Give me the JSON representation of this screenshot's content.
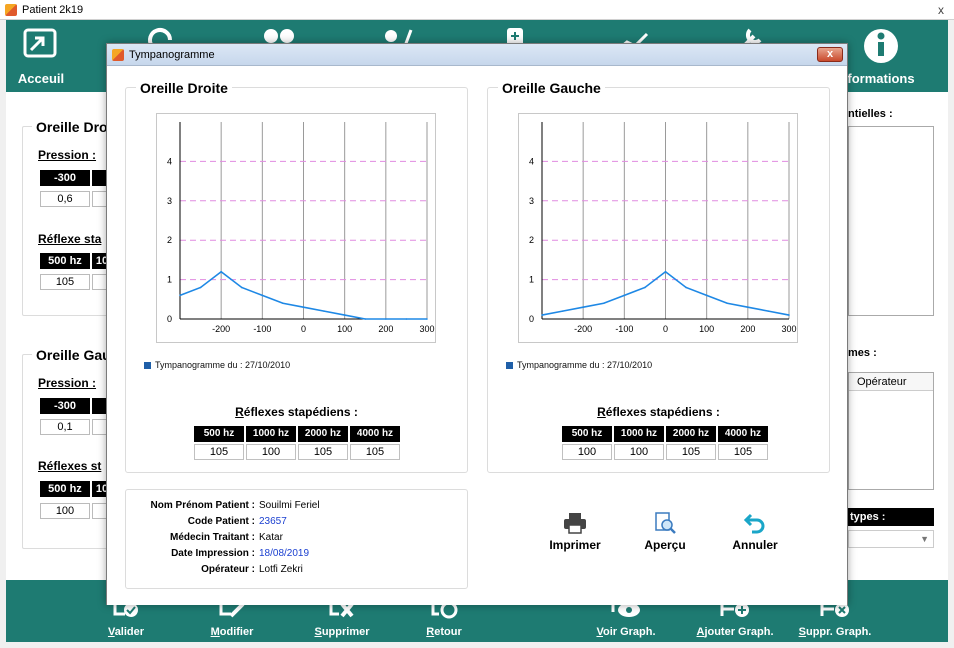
{
  "main_window": {
    "title": "Patient 2k19",
    "close_glyph": "x",
    "toolbar": [
      {
        "label": "Acceuil",
        "icon": "login-icon"
      },
      {
        "label": "",
        "icon": "ear-icon"
      },
      {
        "label": "",
        "icon": "people-icon"
      },
      {
        "label": "",
        "icon": "doctor-icon"
      },
      {
        "label": "",
        "icon": "medicine-icon"
      },
      {
        "label": "",
        "icon": "chart-line-icon"
      },
      {
        "label": "",
        "icon": "tools-icon"
      },
      {
        "label": "formations",
        "icon": "info-icon"
      }
    ],
    "left_right": {
      "title": "Oreille Dro",
      "pression_label": "Pression :",
      "pression_head": "-300",
      "pression_val": "0,6",
      "reflexe_label": "Réflexe sta",
      "reflexe_head": "500 hz",
      "reflexe_head2": "10",
      "reflexe_val": "105"
    },
    "left_left": {
      "title": "Oreille Gau",
      "pression_label": "Pression :",
      "pression_head": "-300",
      "pression_val": "0,1",
      "reflexe_label": "Réflexes st",
      "reflexe_head": "500 hz",
      "reflexe_head2": "10",
      "reflexe_val": "100"
    },
    "right_side": {
      "label1": "ntielles :",
      "label2": "mes :",
      "list_header": "Opérateur",
      "label3": "types :"
    },
    "bottom_bar": [
      {
        "label": "Valider",
        "icon": "check-icon"
      },
      {
        "label": "Modifier",
        "icon": "edit-icon"
      },
      {
        "label": "Supprimer",
        "icon": "delete-icon"
      },
      {
        "label": "Retour",
        "icon": "back-icon"
      },
      {
        "label": "Voir Graph.",
        "icon": "eye-graph-icon"
      },
      {
        "label": "Ajouter Graph.",
        "icon": "add-graph-icon"
      },
      {
        "label": "Suppr. Graph.",
        "icon": "remove-graph-icon"
      }
    ]
  },
  "dialog": {
    "title": "Tympanogramme",
    "close_glyph": "x",
    "right_ear": {
      "title": "Oreille Droite",
      "legend": "Tympanogramme du : 27/10/2010",
      "reflexes_title": "Réflexes stapédiens :",
      "frequencies": [
        "500 hz",
        "1000 hz",
        "2000 hz",
        "4000 hz"
      ],
      "values": [
        "105",
        "100",
        "105",
        "105"
      ]
    },
    "left_ear": {
      "title": "Oreille Gauche",
      "legend": "Tympanogramme du : 27/10/2010",
      "reflexes_title": "Réflexes stapédiens :",
      "frequencies": [
        "500 hz",
        "1000 hz",
        "2000 hz",
        "4000 hz"
      ],
      "values": [
        "100",
        "100",
        "105",
        "105"
      ]
    },
    "patient_info": [
      {
        "label": "Nom Prénom Patient :",
        "value": "Souilmi Feriel",
        "blue": false
      },
      {
        "label": "Code Patient :",
        "value": "23657",
        "blue": true
      },
      {
        "label": "Médecin Traitant :",
        "value": "Katar",
        "blue": false
      },
      {
        "label": "Date Impression :",
        "value": "18/08/2019",
        "blue": true
      },
      {
        "label": "Opérateur :",
        "value": "Lotfi Zekri",
        "blue": false
      }
    ],
    "actions": [
      {
        "label": "Imprimer",
        "icon": "printer-icon"
      },
      {
        "label": "Aperçu",
        "icon": "preview-icon"
      },
      {
        "label": "Annuler",
        "icon": "undo-icon"
      }
    ]
  },
  "colors": {
    "teal": "#1e7b72",
    "series": "#1e88e5",
    "grid_pink": "#e08be0",
    "grid_gray": "#9a9a9a"
  },
  "chart_data": [
    {
      "type": "line",
      "title": "",
      "x_ticks": [
        -200,
        -100,
        0,
        100,
        200,
        300
      ],
      "y_ticks": [
        0,
        1,
        2,
        3,
        4
      ],
      "xlim": [
        -300,
        300
      ],
      "ylim": [
        0,
        5
      ],
      "series": [
        {
          "name": "Tympanogramme du : 27/10/2010",
          "x": [
            -300,
            -250,
            -200,
            -150,
            -100,
            -50,
            0,
            50,
            100,
            150,
            200,
            250,
            300
          ],
          "y": [
            0.6,
            0.8,
            1.2,
            0.8,
            0.6,
            0.4,
            0.3,
            0.2,
            0.1,
            0,
            0,
            0,
            0
          ]
        }
      ]
    },
    {
      "type": "line",
      "title": "",
      "x_ticks": [
        -200,
        -100,
        0,
        100,
        200,
        300
      ],
      "y_ticks": [
        0,
        1,
        2,
        3,
        4
      ],
      "xlim": [
        -300,
        300
      ],
      "ylim": [
        0,
        5
      ],
      "series": [
        {
          "name": "Tympanogramme du : 27/10/2010",
          "x": [
            -300,
            -250,
            -200,
            -150,
            -100,
            -50,
            0,
            50,
            100,
            150,
            200,
            250,
            300
          ],
          "y": [
            0.1,
            0.2,
            0.3,
            0.4,
            0.6,
            0.8,
            1.2,
            0.8,
            0.6,
            0.4,
            0.3,
            0.2,
            0.1
          ]
        }
      ]
    }
  ]
}
